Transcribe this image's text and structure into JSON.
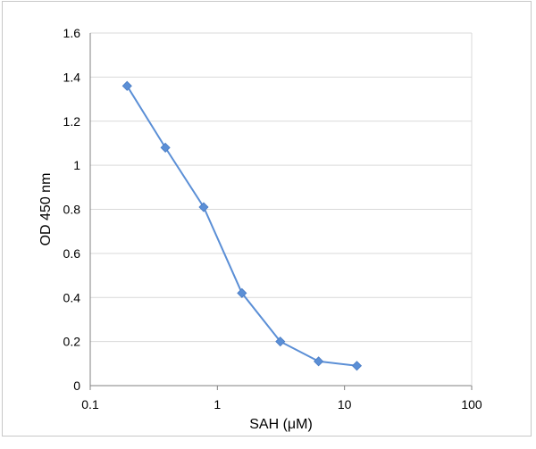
{
  "chart_data": {
    "type": "line",
    "title": "",
    "xlabel": "SAH (μM)",
    "ylabel": "OD 450 nm",
    "xscale": "log",
    "xlim": [
      0.1,
      100
    ],
    "ylim": [
      0,
      1.6
    ],
    "x_ticks": [
      {
        "value": 0.1,
        "label": "0.1"
      },
      {
        "value": 1,
        "label": "1"
      },
      {
        "value": 10,
        "label": "10"
      },
      {
        "value": 100,
        "label": "100"
      }
    ],
    "y_ticks": [
      {
        "value": 0,
        "label": "0"
      },
      {
        "value": 0.2,
        "label": "0.2"
      },
      {
        "value": 0.4,
        "label": "0.4"
      },
      {
        "value": 0.6,
        "label": "0.6"
      },
      {
        "value": 0.8,
        "label": "0.8"
      },
      {
        "value": 1,
        "label": "1"
      },
      {
        "value": 1.2,
        "label": "1.2"
      },
      {
        "value": 1.4,
        "label": "1.4"
      },
      {
        "value": 1.6,
        "label": "1.6"
      }
    ],
    "grid": "horizontal",
    "legend": "none",
    "series": [
      {
        "color": "#5b8fd6",
        "marker": "diamond",
        "points": [
          {
            "x": 0.195,
            "y": 1.36
          },
          {
            "x": 0.39,
            "y": 1.08
          },
          {
            "x": 0.78,
            "y": 0.81
          },
          {
            "x": 1.56,
            "y": 0.42
          },
          {
            "x": 3.125,
            "y": 0.2
          },
          {
            "x": 6.25,
            "y": 0.11
          },
          {
            "x": 12.5,
            "y": 0.09
          }
        ]
      }
    ]
  },
  "colors": {
    "gridline": "#d9d9d9",
    "axis": "#808080",
    "frame": "#c8c8c8"
  }
}
